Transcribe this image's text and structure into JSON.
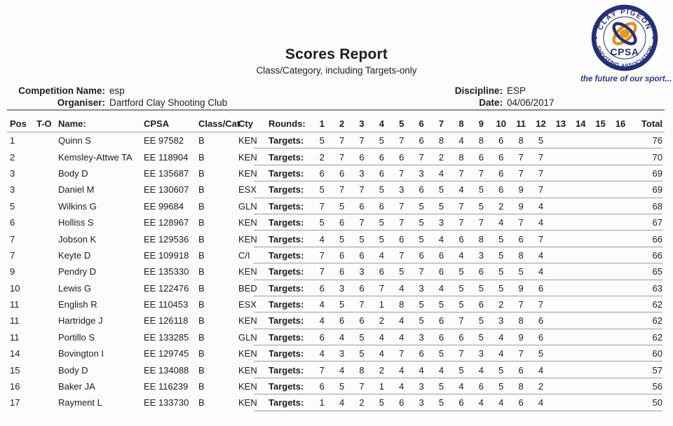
{
  "page": {
    "title": "Scores Report",
    "subtitle": "Class/Category, including Targets-only"
  },
  "logo": {
    "arc_top": "CLAY PIGEON",
    "arc_bottom": "SHOOTING ASSOCIATION",
    "center": "CPSA",
    "tagline": "the future of our sport...",
    "navy": "#242f78",
    "orange": "#df921f"
  },
  "meta": {
    "competition_label": "Competition Name:",
    "competition_value": "esp",
    "organiser_label": "Organiser:",
    "organiser_value": "Dartford Clay Shooting Club",
    "discipline_label": "Discipline:",
    "discipline_value": "ESP",
    "date_label": "Date:",
    "date_value": "04/06/2017"
  },
  "table": {
    "headers": {
      "pos": "Pos",
      "to": "T-O",
      "name": "Name:",
      "cpsa": "CPSA",
      "class_cat": "Class/Cat",
      "cty": "Cty",
      "rounds": "Rounds:",
      "round_numbers": [
        "1",
        "2",
        "3",
        "4",
        "5",
        "6",
        "7",
        "8",
        "9",
        "10",
        "11",
        "12",
        "13",
        "14",
        "15",
        "16"
      ],
      "total": "Total"
    },
    "targets_label": "Targets:",
    "rows": [
      {
        "pos": "1",
        "to": "",
        "name": "Quinn S",
        "cpsa": "EE 97582",
        "class": "B",
        "cty": "KEN",
        "scores": [
          5,
          7,
          7,
          5,
          7,
          6,
          8,
          4,
          8,
          6,
          8,
          5
        ],
        "total": 76
      },
      {
        "pos": "2",
        "to": "",
        "name": "Kemsley-Attwe TA",
        "cpsa": "EE 118904",
        "class": "B",
        "cty": "KEN",
        "scores": [
          2,
          7,
          6,
          6,
          6,
          7,
          2,
          8,
          6,
          6,
          7,
          7
        ],
        "total": 70
      },
      {
        "pos": "3",
        "to": "",
        "name": "Body D",
        "cpsa": "EE 135687",
        "class": "B",
        "cty": "KEN",
        "scores": [
          6,
          6,
          3,
          6,
          7,
          3,
          4,
          7,
          7,
          6,
          7,
          7
        ],
        "total": 69
      },
      {
        "pos": "3",
        "to": "",
        "name": "Daniel M",
        "cpsa": "EE 130607",
        "class": "B",
        "cty": "ESX",
        "scores": [
          5,
          7,
          7,
          5,
          3,
          6,
          5,
          4,
          5,
          6,
          9,
          7
        ],
        "total": 69
      },
      {
        "pos": "5",
        "to": "",
        "name": "Wilkins G",
        "cpsa": "EE 99684",
        "class": "B",
        "cty": "GLN",
        "scores": [
          7,
          5,
          6,
          6,
          7,
          5,
          5,
          7,
          5,
          2,
          9,
          4
        ],
        "total": 68
      },
      {
        "pos": "6",
        "to": "",
        "name": "Holliss S",
        "cpsa": "EE 128967",
        "class": "B",
        "cty": "KEN",
        "scores": [
          5,
          6,
          7,
          5,
          7,
          5,
          3,
          7,
          7,
          4,
          7,
          4
        ],
        "total": 67
      },
      {
        "pos": "7",
        "to": "",
        "name": "Jobson K",
        "cpsa": "EE 129536",
        "class": "B",
        "cty": "KEN",
        "scores": [
          4,
          5,
          5,
          5,
          6,
          5,
          4,
          6,
          8,
          5,
          6,
          7
        ],
        "total": 66
      },
      {
        "pos": "7",
        "to": "",
        "name": "Keyte D",
        "cpsa": "EE 109918",
        "class": "B",
        "cty": "C/I",
        "scores": [
          7,
          6,
          6,
          4,
          7,
          6,
          6,
          4,
          3,
          5,
          8,
          4
        ],
        "total": 66
      },
      {
        "pos": "9",
        "to": "",
        "name": "Pendry D",
        "cpsa": "EE 135330",
        "class": "B",
        "cty": "KEN",
        "scores": [
          7,
          6,
          3,
          6,
          5,
          7,
          6,
          5,
          6,
          5,
          5,
          4
        ],
        "total": 65
      },
      {
        "pos": "10",
        "to": "",
        "name": "Lewis G",
        "cpsa": "EE 122476",
        "class": "B",
        "cty": "BED",
        "scores": [
          6,
          3,
          6,
          7,
          4,
          3,
          4,
          5,
          5,
          5,
          9,
          6
        ],
        "total": 63
      },
      {
        "pos": "11",
        "to": "",
        "name": "English R",
        "cpsa": "EE 110453",
        "class": "B",
        "cty": "ESX",
        "scores": [
          4,
          5,
          7,
          1,
          8,
          5,
          5,
          5,
          6,
          2,
          7,
          7
        ],
        "total": 62
      },
      {
        "pos": "11",
        "to": "",
        "name": "Hartridge J",
        "cpsa": "EE 126118",
        "class": "B",
        "cty": "KEN",
        "scores": [
          4,
          6,
          6,
          2,
          4,
          5,
          6,
          7,
          5,
          3,
          8,
          6
        ],
        "total": 62
      },
      {
        "pos": "11",
        "to": "",
        "name": "Portillo S",
        "cpsa": "EE 133285",
        "class": "B",
        "cty": "GLN",
        "scores": [
          6,
          4,
          5,
          4,
          4,
          3,
          6,
          6,
          5,
          4,
          9,
          6
        ],
        "total": 62
      },
      {
        "pos": "14",
        "to": "",
        "name": "Bovington I",
        "cpsa": "EE 129745",
        "class": "B",
        "cty": "KEN",
        "scores": [
          4,
          3,
          5,
          4,
          7,
          6,
          5,
          7,
          3,
          4,
          7,
          5
        ],
        "total": 60
      },
      {
        "pos": "15",
        "to": "",
        "name": "Body D",
        "cpsa": "EE 134088",
        "class": "B",
        "cty": "KEN",
        "scores": [
          7,
          4,
          8,
          2,
          4,
          4,
          4,
          5,
          4,
          5,
          6,
          4
        ],
        "total": 57
      },
      {
        "pos": "16",
        "to": "",
        "name": "Baker JA",
        "cpsa": "EE 116239",
        "class": "B",
        "cty": "KEN",
        "scores": [
          6,
          5,
          7,
          1,
          4,
          3,
          5,
          4,
          6,
          5,
          8,
          2
        ],
        "total": 56
      },
      {
        "pos": "17",
        "to": "",
        "name": "Rayment L",
        "cpsa": "EE 133730",
        "class": "B",
        "cty": "KEN",
        "scores": [
          1,
          4,
          2,
          5,
          6,
          3,
          5,
          6,
          4,
          4,
          6,
          4
        ],
        "total": 50
      }
    ]
  }
}
